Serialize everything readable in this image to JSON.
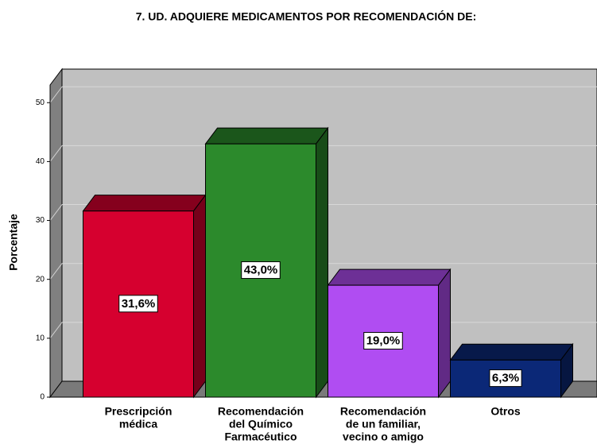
{
  "chart_data": {
    "type": "bar3d",
    "title": "7. UD. ADQUIERE MEDICAMENTOS POR RECOMENDACIÓN DE:",
    "y_label": "Porcentaje",
    "categories": [
      [
        "Prescripción",
        "médica"
      ],
      [
        "Recomendación",
        "del Químico",
        "Farmacéutico"
      ],
      [
        "Recomendación",
        "de un familiar,",
        "vecino o amigo"
      ],
      [
        "Otros"
      ]
    ],
    "values": [
      31.6,
      43.0,
      19.0,
      6.3
    ],
    "value_labels": [
      "31,6%",
      "43,0%",
      "19,0%",
      "6,3%"
    ],
    "colors": [
      "#d6002f",
      "#2c8a2c",
      "#b04df2",
      "#0b2877"
    ],
    "ylim": [
      0,
      53
    ],
    "yticks": [
      0,
      10,
      20,
      30,
      40,
      50
    ],
    "grid": true
  }
}
